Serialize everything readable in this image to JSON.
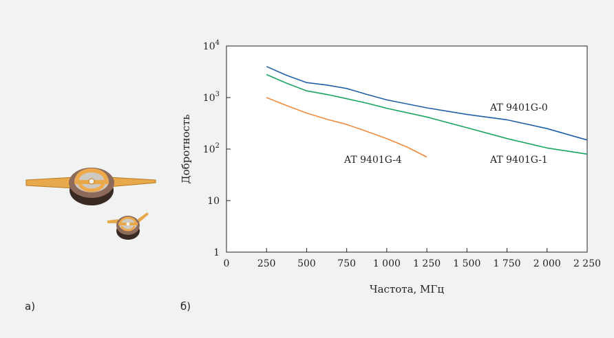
{
  "panels": {
    "a_label": "а)",
    "b_label": "б)"
  },
  "chart_data": {
    "type": "line",
    "xlabel": "Частота, МГц",
    "ylabel": "Добротность",
    "xlim": [
      0,
      2250
    ],
    "ylim": [
      1,
      10000
    ],
    "yscale": "log",
    "x_ticks": [
      {
        "value": 0,
        "label": "0"
      },
      {
        "value": 250,
        "label": "250"
      },
      {
        "value": 500,
        "label": "500"
      },
      {
        "value": 750,
        "label": "750"
      },
      {
        "value": 1000,
        "label": "1 000"
      },
      {
        "value": 1250,
        "label": "1 250"
      },
      {
        "value": 1500,
        "label": "1 500"
      },
      {
        "value": 1750,
        "label": "1 750"
      },
      {
        "value": 2000,
        "label": "2 000"
      },
      {
        "value": 2250,
        "label": "2 250"
      }
    ],
    "y_ticks": [
      {
        "value": 1,
        "base": "1",
        "exp": ""
      },
      {
        "value": 10,
        "base": "10",
        "exp": ""
      },
      {
        "value": 100,
        "base": "10",
        "exp": "2"
      },
      {
        "value": 1000,
        "base": "10",
        "exp": "3"
      },
      {
        "value": 10000,
        "base": "10",
        "exp": "4"
      }
    ],
    "grid": false,
    "series": [
      {
        "name": "AT 9401G-0",
        "color": "#1f5fa8",
        "x": [
          250,
          375,
          500,
          625,
          750,
          875,
          1000,
          1250,
          1500,
          1750,
          2000,
          2250
        ],
        "y": [
          4000,
          2700,
          1950,
          1750,
          1500,
          1150,
          900,
          630,
          470,
          370,
          250,
          150
        ]
      },
      {
        "name": "AT 9401G-1",
        "color": "#18a35e",
        "x": [
          250,
          375,
          500,
          625,
          750,
          875,
          1000,
          1250,
          1500,
          1750,
          2000,
          2250
        ],
        "y": [
          2800,
          1900,
          1350,
          1150,
          950,
          780,
          620,
          420,
          260,
          160,
          105,
          80
        ]
      },
      {
        "name": "AT 9401G-4",
        "color": "#f18a3b",
        "x": [
          250,
          375,
          500,
          625,
          750,
          875,
          1000,
          1125,
          1250
        ],
        "y": [
          1000,
          700,
          500,
          380,
          300,
          220,
          160,
          110,
          70
        ]
      }
    ]
  }
}
